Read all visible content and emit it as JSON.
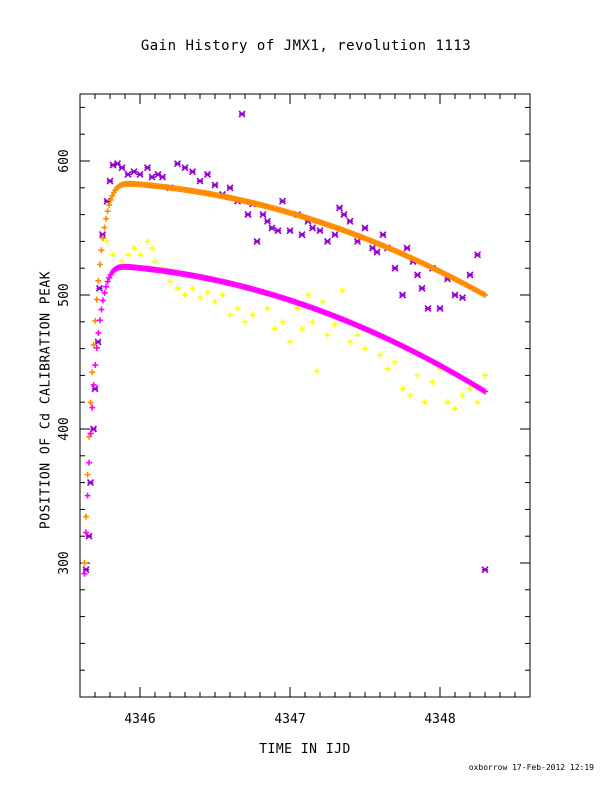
{
  "chart_data": {
    "type": "scatter",
    "title": "Gain History of JMX1, revolution 1113",
    "xlabel": "TIME IN IJD",
    "ylabel": "POSITION OF Cd CALIBRATION PEAK",
    "xlim": [
      4345.6,
      4348.6
    ],
    "ylim": [
      200,
      650
    ],
    "xticks": [
      4346,
      4347,
      4348
    ],
    "yticks": [
      300,
      400,
      500,
      600
    ],
    "grid": false,
    "series": [
      {
        "color": "#9400d3",
        "marker": "asterisk",
        "points": [
          [
            4345.64,
            295
          ],
          [
            4345.66,
            320
          ],
          [
            4345.67,
            360
          ],
          [
            4345.69,
            400
          ],
          [
            4345.7,
            430
          ],
          [
            4345.72,
            465
          ],
          [
            4345.73,
            505
          ],
          [
            4345.75,
            545
          ],
          [
            4345.78,
            570
          ],
          [
            4345.8,
            585
          ],
          [
            4345.82,
            597
          ],
          [
            4345.85,
            598
          ],
          [
            4345.88,
            595
          ],
          [
            4345.92,
            590
          ],
          [
            4345.96,
            592
          ],
          [
            4346.0,
            590
          ],
          [
            4346.05,
            595
          ],
          [
            4346.08,
            588
          ],
          [
            4346.12,
            590
          ],
          [
            4346.15,
            588
          ],
          [
            4346.2,
            580
          ],
          [
            4346.25,
            598
          ],
          [
            4346.3,
            595
          ],
          [
            4346.35,
            592
          ],
          [
            4346.4,
            585
          ],
          [
            4346.45,
            590
          ],
          [
            4346.5,
            582
          ],
          [
            4346.55,
            575
          ],
          [
            4346.6,
            580
          ],
          [
            4346.65,
            570
          ],
          [
            4346.68,
            635
          ],
          [
            4346.72,
            560
          ],
          [
            4346.75,
            568
          ],
          [
            4346.78,
            540
          ],
          [
            4346.82,
            560
          ],
          [
            4346.85,
            555
          ],
          [
            4346.88,
            550
          ],
          [
            4346.92,
            548
          ],
          [
            4346.95,
            570
          ],
          [
            4347.0,
            548
          ],
          [
            4347.05,
            560
          ],
          [
            4347.08,
            545
          ],
          [
            4347.12,
            555
          ],
          [
            4347.15,
            550
          ],
          [
            4347.2,
            548
          ],
          [
            4347.25,
            540
          ],
          [
            4347.3,
            545
          ],
          [
            4347.33,
            565
          ],
          [
            4347.36,
            560
          ],
          [
            4347.4,
            555
          ],
          [
            4347.45,
            540
          ],
          [
            4347.5,
            550
          ],
          [
            4347.55,
            535
          ],
          [
            4347.58,
            532
          ],
          [
            4347.62,
            545
          ],
          [
            4347.65,
            535
          ],
          [
            4347.7,
            520
          ],
          [
            4347.75,
            500
          ],
          [
            4347.78,
            535
          ],
          [
            4347.82,
            525
          ],
          [
            4347.85,
            515
          ],
          [
            4347.88,
            505
          ],
          [
            4347.92,
            490
          ],
          [
            4347.95,
            520
          ],
          [
            4348.0,
            490
          ],
          [
            4348.05,
            512
          ],
          [
            4348.1,
            500
          ],
          [
            4348.15,
            498
          ],
          [
            4348.2,
            515
          ],
          [
            4348.25,
            530
          ],
          [
            4348.3,
            295
          ]
        ]
      },
      {
        "color": "#ffff00",
        "marker": "plus",
        "points": [
          [
            4345.78,
            540
          ],
          [
            4345.82,
            530
          ],
          [
            4345.85,
            520
          ],
          [
            4345.88,
            525
          ],
          [
            4345.92,
            530
          ],
          [
            4345.96,
            535
          ],
          [
            4346.0,
            530
          ],
          [
            4346.05,
            540
          ],
          [
            4346.08,
            535
          ],
          [
            4346.1,
            525
          ],
          [
            4346.15,
            520
          ],
          [
            4346.2,
            510
          ],
          [
            4346.25,
            505
          ],
          [
            4346.3,
            500
          ],
          [
            4346.35,
            505
          ],
          [
            4346.4,
            498
          ],
          [
            4346.45,
            502
          ],
          [
            4346.5,
            495
          ],
          [
            4346.55,
            500
          ],
          [
            4346.6,
            485
          ],
          [
            4346.65,
            490
          ],
          [
            4346.7,
            480
          ],
          [
            4346.75,
            485
          ],
          [
            4346.8,
            502
          ],
          [
            4346.85,
            490
          ],
          [
            4346.9,
            475
          ],
          [
            4346.95,
            480
          ],
          [
            4347.0,
            465
          ],
          [
            4347.05,
            490
          ],
          [
            4347.08,
            475
          ],
          [
            4347.12,
            500
          ],
          [
            4347.15,
            480
          ],
          [
            4347.18,
            443
          ],
          [
            4347.22,
            495
          ],
          [
            4347.25,
            470
          ],
          [
            4347.3,
            478
          ],
          [
            4347.35,
            503
          ],
          [
            4347.4,
            465
          ],
          [
            4347.45,
            470
          ],
          [
            4347.5,
            460
          ],
          [
            4347.55,
            472
          ],
          [
            4347.6,
            455
          ],
          [
            4347.65,
            445
          ],
          [
            4347.7,
            450
          ],
          [
            4347.75,
            430
          ],
          [
            4347.8,
            425
          ],
          [
            4347.85,
            440
          ],
          [
            4347.9,
            420
          ],
          [
            4347.95,
            435
          ],
          [
            4348.0,
            445
          ],
          [
            4348.05,
            420
          ],
          [
            4348.1,
            415
          ],
          [
            4348.15,
            425
          ],
          [
            4348.2,
            430
          ],
          [
            4348.25,
            420
          ],
          [
            4348.3,
            440
          ]
        ]
      },
      {
        "color": "#ff8c00",
        "marker": "fit",
        "peak_x": 4345.95,
        "peak_y": 583,
        "end_x": 4348.3,
        "end_y": 500,
        "start_x": 4345.63,
        "start_y": 300
      },
      {
        "color": "#ff00ff",
        "marker": "fit",
        "peak_x": 4345.92,
        "peak_y": 521,
        "end_x": 4348.3,
        "end_y": 428,
        "start_x": 4345.63,
        "start_y": 292
      }
    ]
  },
  "footer": "oxborrow 17-Feb-2012 12:19"
}
